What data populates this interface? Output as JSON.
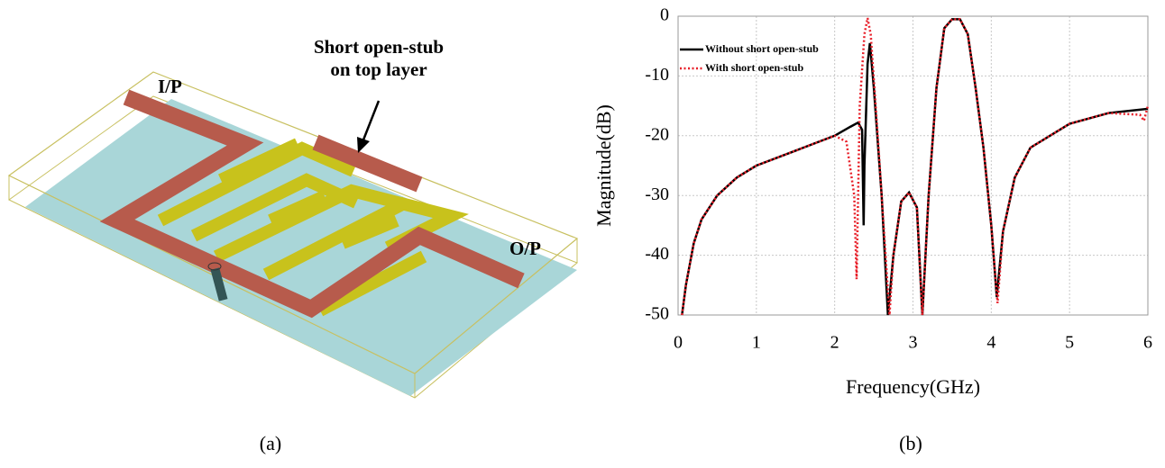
{
  "diagram": {
    "labels": {
      "input": "I/P",
      "stub_line1": "Short open-stub",
      "stub_line2": "on top layer",
      "output": "O/P"
    }
  },
  "captions": [
    "(a)",
    "(b)"
  ],
  "chart_data": {
    "type": "line",
    "xlabel": "Frequency(GHz)",
    "ylabel": "Magnitude(dB)",
    "xlim": [
      0,
      6
    ],
    "ylim": [
      -50,
      0
    ],
    "xticks": [
      0,
      1,
      2,
      3,
      4,
      5,
      6
    ],
    "yticks": [
      -50,
      -40,
      -30,
      -20,
      -10,
      0
    ],
    "grid": true,
    "legend": "upper left",
    "series": [
      {
        "name": "Without short open-stub",
        "color": "#000000",
        "line_style": "solid",
        "x": [
          0.05,
          0.1,
          0.2,
          0.3,
          0.5,
          0.75,
          1.0,
          1.5,
          2.0,
          2.2,
          2.3,
          2.35,
          2.37,
          2.38,
          2.42,
          2.45,
          2.5,
          2.6,
          2.68,
          2.75,
          2.85,
          2.95,
          3.05,
          3.12,
          3.2,
          3.3,
          3.4,
          3.5,
          3.6,
          3.7,
          3.8,
          3.9,
          4.0,
          4.07,
          4.15,
          4.3,
          4.5,
          5.0,
          5.5,
          6.0
        ],
        "values": [
          -50,
          -45,
          -38,
          -34,
          -30,
          -27,
          -25,
          -22.5,
          -20,
          -18.5,
          -17.8,
          -19,
          -35,
          -25,
          -8,
          -4.5,
          -12,
          -30,
          -50,
          -40,
          -31,
          -29.5,
          -32,
          -50,
          -30,
          -12,
          -2,
          -0.5,
          -0.5,
          -3,
          -12,
          -22,
          -35,
          -47,
          -36,
          -27,
          -22,
          -18,
          -16.2,
          -15.5
        ]
      },
      {
        "name": "With short open-stub",
        "color": "#e8202a",
        "line_style": "dotted",
        "x": [
          0.05,
          0.1,
          0.2,
          0.3,
          0.5,
          0.75,
          1.0,
          1.5,
          2.0,
          2.15,
          2.25,
          2.28,
          2.32,
          2.38,
          2.42,
          2.46,
          2.55,
          2.65,
          2.7,
          2.75,
          2.85,
          2.95,
          3.05,
          3.12,
          3.2,
          3.3,
          3.4,
          3.5,
          3.6,
          3.7,
          3.8,
          3.9,
          4.0,
          4.08,
          4.15,
          4.3,
          4.5,
          5.0,
          5.5,
          5.9,
          5.95,
          6.0
        ],
        "values": [
          -50,
          -45,
          -38,
          -34,
          -30,
          -27,
          -25,
          -22.5,
          -20,
          -21,
          -30,
          -44,
          -15,
          -3,
          -0.3,
          -3,
          -20,
          -40,
          -50,
          -40,
          -31,
          -29.5,
          -32,
          -50,
          -30,
          -12,
          -2,
          -0.5,
          -0.5,
          -3,
          -12,
          -22,
          -35,
          -48,
          -36,
          -27,
          -22,
          -18,
          -16.2,
          -16.5,
          -17.5,
          -15
        ]
      }
    ]
  }
}
